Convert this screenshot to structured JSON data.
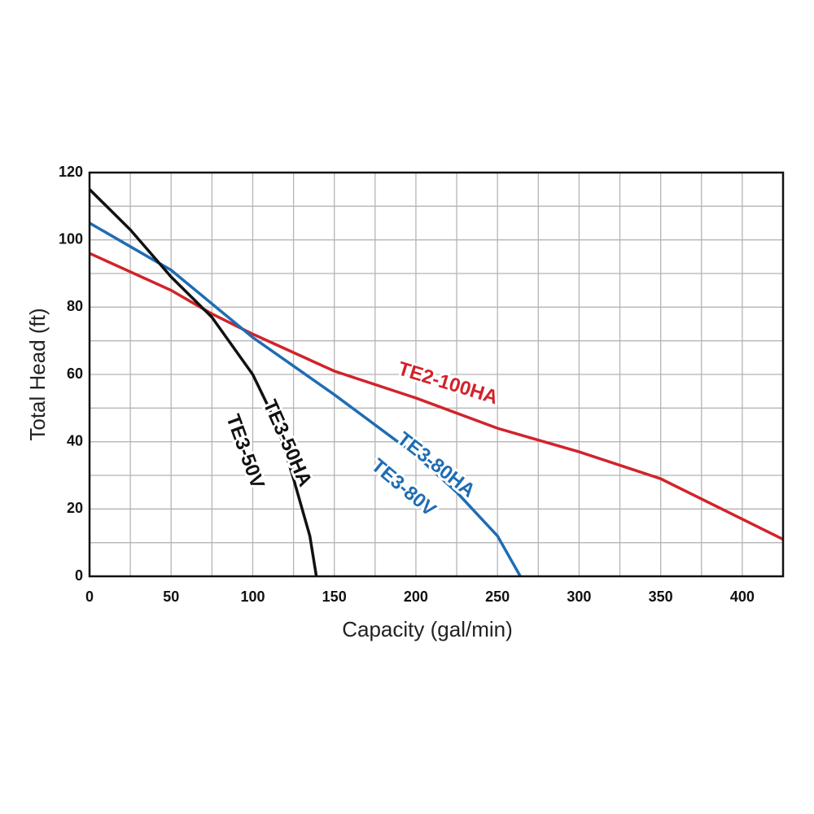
{
  "chart_data": {
    "type": "line",
    "x_label": "Capacity (gal/min)",
    "y_label": "Total Head (ft)",
    "xlim": [
      0,
      425
    ],
    "ylim": [
      0,
      120
    ],
    "xticks": [
      0,
      50,
      100,
      150,
      200,
      250,
      300,
      350,
      400
    ],
    "yticks": [
      0,
      20,
      40,
      60,
      80,
      100,
      120
    ],
    "xgrid": [
      25,
      50,
      75,
      100,
      125,
      150,
      175,
      200,
      225,
      250,
      275,
      300,
      325,
      350,
      375,
      400
    ],
    "ygrid": [
      10,
      20,
      30,
      40,
      50,
      60,
      70,
      80,
      90,
      100,
      110
    ],
    "grid": true,
    "series": [
      {
        "labels": [
          "TE2-100HA"
        ],
        "color": "#d2232a",
        "x": [
          0,
          50,
          75,
          100,
          150,
          200,
          250,
          300,
          350,
          425
        ],
        "values": [
          96,
          85,
          78,
          72,
          61,
          53,
          44,
          37,
          29,
          11
        ]
      },
      {
        "labels": [
          "TE3-80HA",
          "TE3-80V"
        ],
        "color": "#1f6db3",
        "x": [
          0,
          50,
          75,
          100,
          150,
          200,
          225,
          250,
          264
        ],
        "values": [
          105,
          91,
          81,
          71,
          54,
          36,
          25,
          12,
          0
        ]
      },
      {
        "labels": [
          "TE3-50HA",
          "TE3-50V"
        ],
        "color": "#111111",
        "x": [
          0,
          25,
          50,
          75,
          100,
          115,
          125,
          135,
          139
        ],
        "values": [
          115,
          103,
          89,
          77,
          60,
          45,
          29,
          12,
          0
        ]
      }
    ]
  }
}
